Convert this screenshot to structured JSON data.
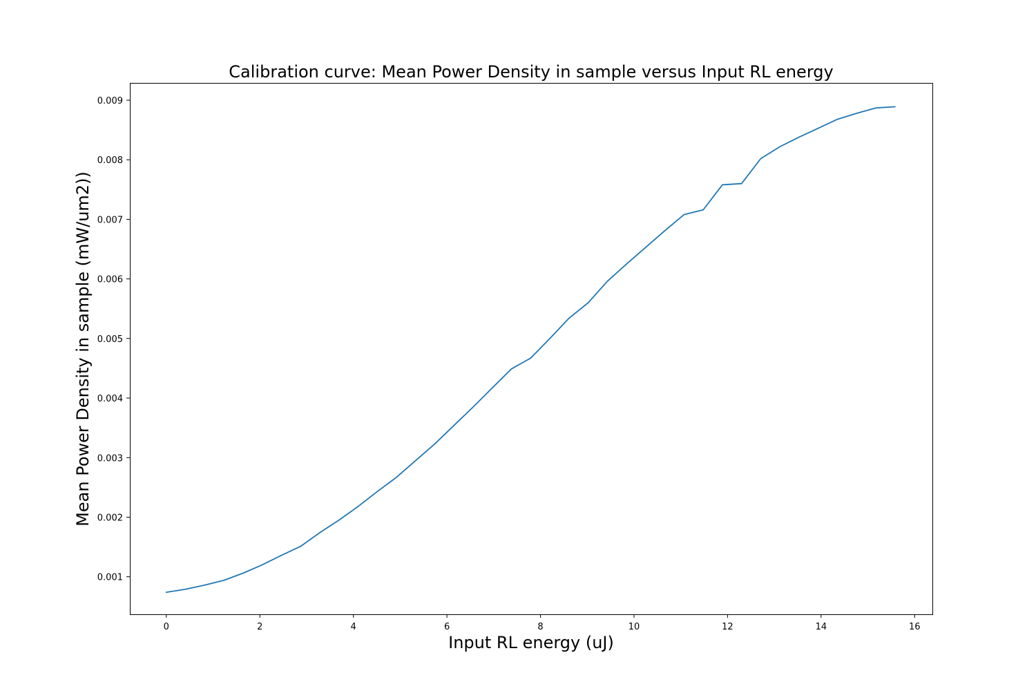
{
  "chart_data": {
    "type": "line",
    "title": "Calibration curve: Mean Power Density in sample versus Input RL energy",
    "xlabel": "Input RL energy (uJ)",
    "ylabel": "Mean Power Density in sample (mW/um2))",
    "xlim": [
      -0.78,
      16.38
    ],
    "ylim": [
      0.00037,
      0.00929
    ],
    "grid": false,
    "legend": "none",
    "x_ticks": [
      0,
      2,
      4,
      6,
      8,
      10,
      12,
      14,
      16
    ],
    "x_tick_labels": [
      "0",
      "2",
      "4",
      "6",
      "8",
      "10",
      "12",
      "14",
      "16"
    ],
    "y_ticks": [
      0.001,
      0.002,
      0.003,
      0.004,
      0.005,
      0.006,
      0.007,
      0.008,
      0.009
    ],
    "y_tick_labels": [
      "0.001",
      "0.002",
      "0.003",
      "0.004",
      "0.005",
      "0.006",
      "0.007",
      "0.008",
      "0.009"
    ],
    "series": [
      {
        "color": "#1f77b4",
        "x": [
          0,
          0.41,
          0.82,
          1.23,
          1.64,
          2.05,
          2.46,
          2.87,
          3.28,
          3.69,
          4.1,
          4.51,
          4.92,
          5.33,
          5.74,
          6.15,
          6.56,
          6.97,
          7.38,
          7.79,
          8.2,
          8.61,
          9.02,
          9.43,
          9.84,
          10.25,
          10.66,
          11.07,
          11.48,
          11.89,
          12.3,
          12.71,
          13.12,
          13.53,
          13.94,
          14.35,
          14.76,
          15.17,
          15.58
        ],
        "y": [
          0.00074,
          0.00079,
          0.00086,
          0.00094,
          0.00106,
          0.0012,
          0.00136,
          0.00151,
          0.00174,
          0.00195,
          0.00218,
          0.00243,
          0.00267,
          0.00295,
          0.00323,
          0.00354,
          0.00385,
          0.00417,
          0.00449,
          0.00467,
          0.005,
          0.00534,
          0.0056,
          0.00596,
          0.00625,
          0.00653,
          0.00681,
          0.00708,
          0.00716,
          0.00758,
          0.0076,
          0.00802,
          0.00822,
          0.00838,
          0.00853,
          0.00868,
          0.00878,
          0.00887,
          0.00889
        ]
      }
    ]
  }
}
